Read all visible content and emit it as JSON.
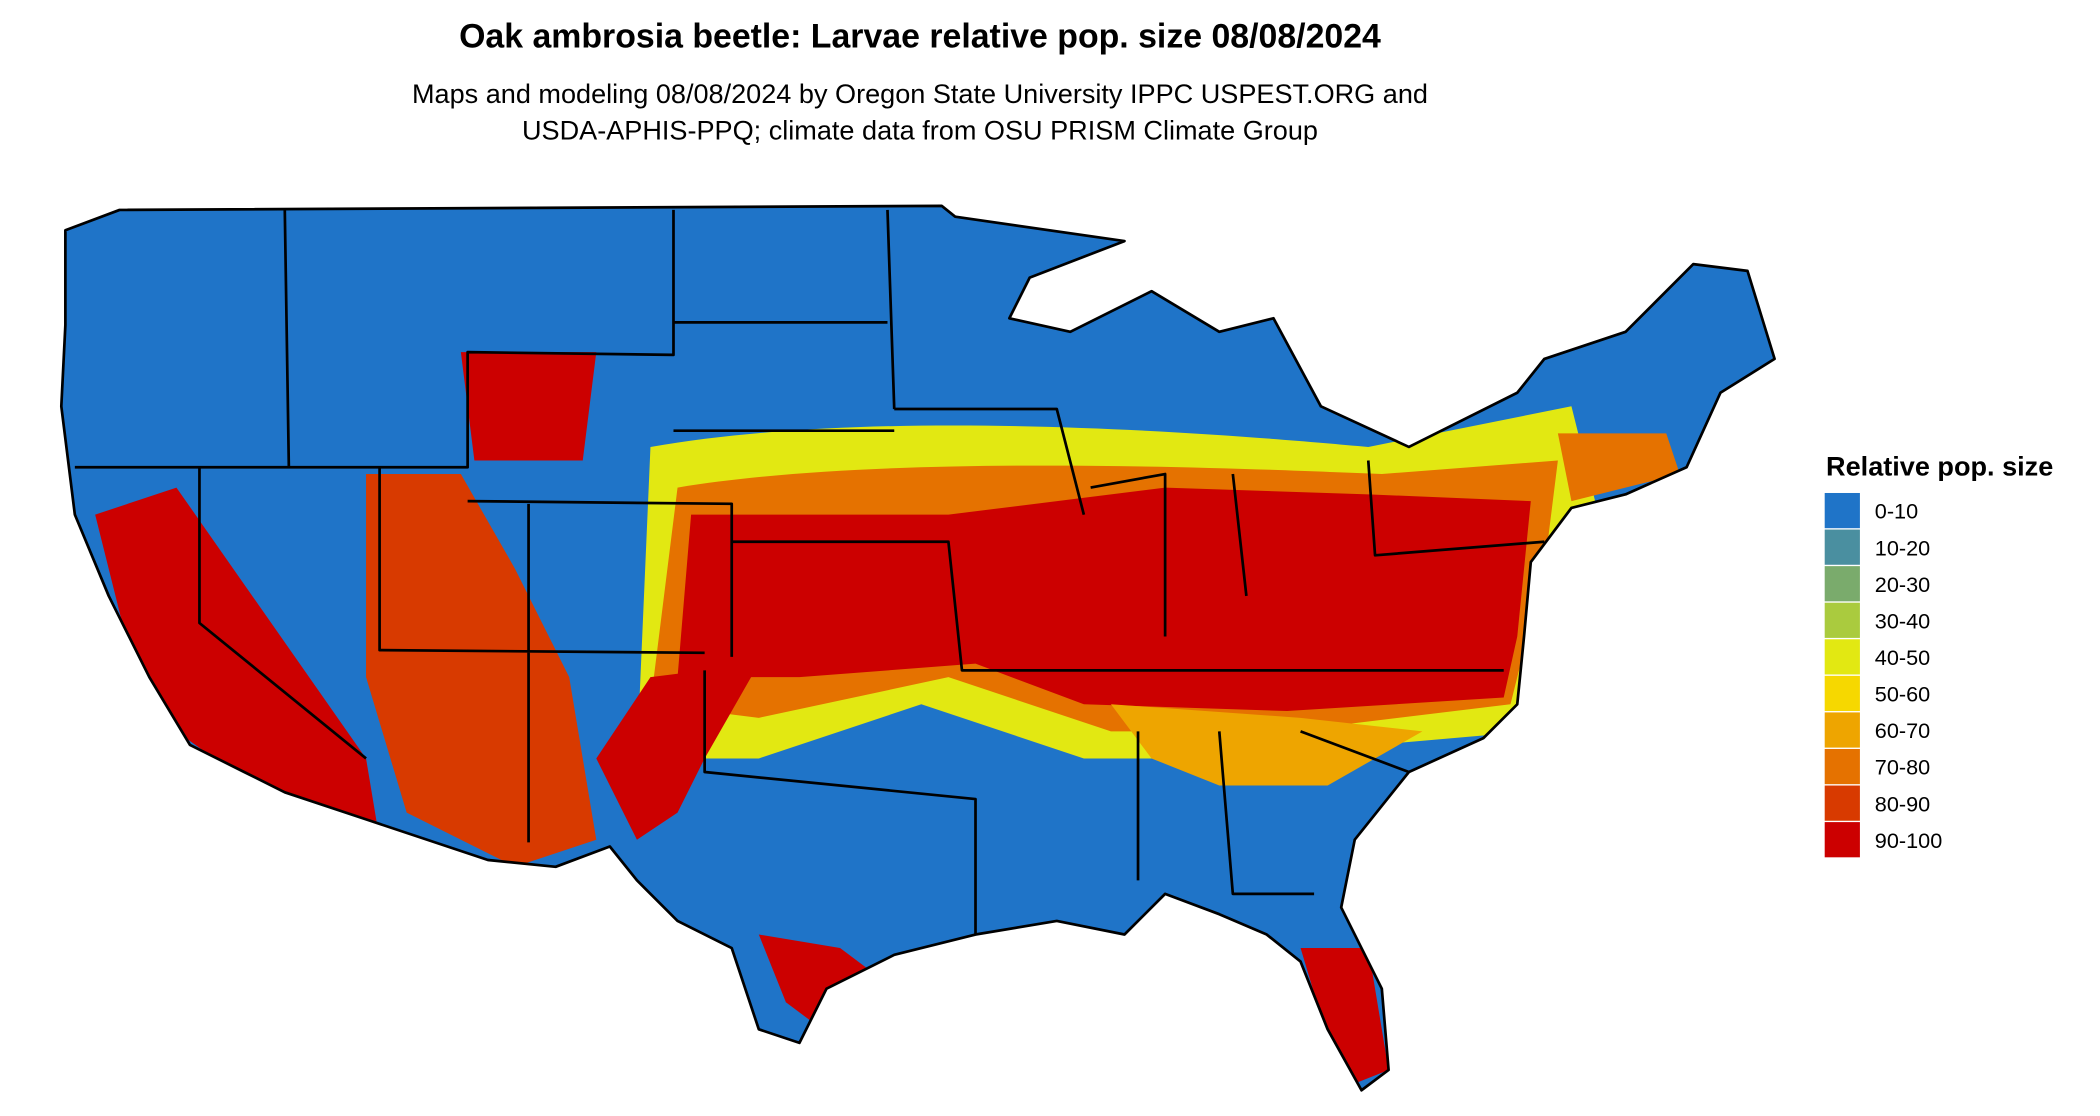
{
  "header": {
    "title": "Oak ambrosia beetle: Larvae relative pop. size 08/08/2024",
    "subtitle": [
      "Maps and modeling 08/08/2024 by Oregon State University IPPC USPEST.ORG and",
      "USDA-APHIS-PPQ; climate data from OSU PRISM Climate Group"
    ]
  },
  "legend": {
    "title": "Relative pop. size",
    "items": [
      {
        "label": "0-10",
        "color": "#1f74c8"
      },
      {
        "label": "10-20",
        "color": "#4a8fa0"
      },
      {
        "label": "20-30",
        "color": "#7aab6c"
      },
      {
        "label": "30-40",
        "color": "#aacb3e"
      },
      {
        "label": "40-50",
        "color": "#e2e812"
      },
      {
        "label": "50-60",
        "color": "#f6d800"
      },
      {
        "label": "60-70",
        "color": "#eea500"
      },
      {
        "label": "70-80",
        "color": "#e57200"
      },
      {
        "label": "80-90",
        "color": "#d83a00"
      },
      {
        "label": "90-100",
        "color": "#cc0000"
      }
    ]
  }
}
